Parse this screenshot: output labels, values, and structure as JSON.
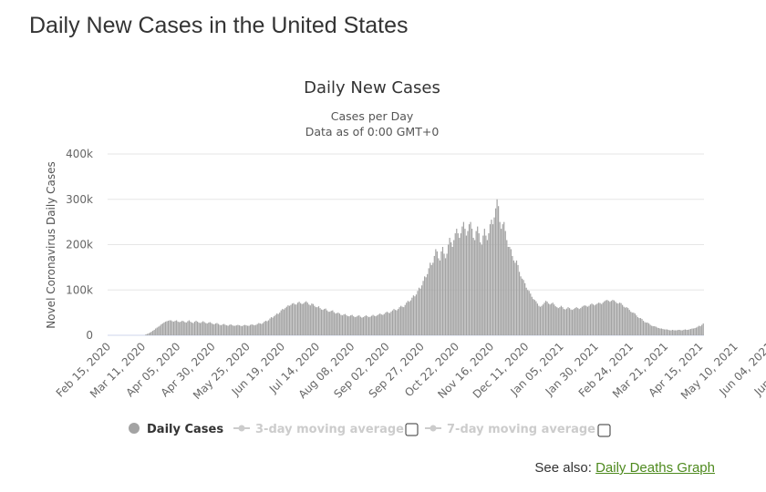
{
  "page": {
    "heading": "Daily New Cases in the United States",
    "see_also_prefix": "See also:",
    "see_also_link": "Daily Deaths Graph"
  },
  "colors": {
    "bar": "#a3a3a3",
    "grid": "#e6e6e6",
    "axis_text": "#666666",
    "legend_inactive": "#cccccc",
    "link": "#4e8a1e"
  },
  "chart_data": {
    "type": "bar",
    "title": "Daily New Cases",
    "subtitle_lines": [
      "Cases per Day",
      "Data as of 0:00 GMT+0"
    ],
    "ylabel": "Novel Coronavirus Daily Cases",
    "xlabel": "",
    "ylim": [
      0,
      400000
    ],
    "y_ticks": [
      0,
      100000,
      200000,
      300000,
      400000
    ],
    "y_tick_labels": [
      "0",
      "100k",
      "200k",
      "300k",
      "400k"
    ],
    "x_tick_labels": [
      "Feb 15, 2020",
      "Mar 11, 2020",
      "Apr 05, 2020",
      "Apr 30, 2020",
      "May 25, 2020",
      "Jun 19, 2020",
      "Jul 14, 2020",
      "Aug 08, 2020",
      "Sep 02, 2020",
      "Sep 27, 2020",
      "Oct 22, 2020",
      "Nov 16, 2020",
      "Dec 11, 2020",
      "Jan 05, 2021",
      "Jan 30, 2021",
      "Feb 24, 2021",
      "Mar 21, 2021",
      "Apr 15, 2021",
      "May 10, 2021",
      "Jun 04, 2021",
      "Jun 29, 2021"
    ],
    "grid": true,
    "legend_position": "bottom",
    "legend": [
      {
        "label": "Daily Cases",
        "active": true
      },
      {
        "label": "3-day moving average",
        "active": false
      },
      {
        "label": "7-day moving average",
        "active": false
      }
    ],
    "series": [
      {
        "name": "Daily Cases",
        "dates": [
          "2020-02-15",
          "2020-07-10"
        ],
        "values": [
          0,
          0,
          0,
          0,
          0,
          0,
          0,
          0,
          0,
          0,
          0,
          0,
          0,
          0,
          0,
          0,
          0,
          0,
          0,
          0,
          0,
          0,
          0,
          0,
          0,
          0,
          0,
          2000,
          3000,
          4500,
          6000,
          8000,
          10000,
          12000,
          15000,
          17000,
          19000,
          21000,
          24000,
          26000,
          28000,
          30000,
          31000,
          32000,
          33000,
          33000,
          31000,
          30000,
          32000,
          33000,
          30000,
          29000,
          30000,
          32000,
          31000,
          29000,
          28000,
          31000,
          33000,
          30000,
          28000,
          27000,
          30000,
          32000,
          30000,
          28000,
          27000,
          29000,
          31000,
          29000,
          27000,
          26000,
          28000,
          29000,
          27000,
          25000,
          24000,
          26000,
          27000,
          25000,
          23000,
          22000,
          24000,
          25000,
          23000,
          22000,
          21000,
          23000,
          24000,
          22000,
          21000,
          21000,
          22000,
          23000,
          22000,
          21000,
          20000,
          22000,
          23000,
          22000,
          21000,
          21000,
          23000,
          24000,
          23000,
          22000,
          23000,
          25000,
          27000,
          26000,
          25000,
          27000,
          30000,
          32000,
          31000,
          33000,
          37000,
          40000,
          39000,
          42000,
          45000,
          48000,
          47000,
          50000,
          55000,
          58000,
          57000,
          60000,
          63000,
          66000,
          65000,
          67000,
          70000,
          71000,
          68000,
          68000,
          72000,
          74000,
          71000,
          69000,
          70000,
          73000,
          75000,
          72000,
          68000,
          66000,
          70000,
          69000,
          65000,
          62000,
          62000,
          64000,
          60000,
          57000,
          56000,
          58000,
          59000,
          55000,
          52000,
          52000,
          54000,
          55000,
          51000,
          48000,
          49000,
          50000,
          48000,
          45000,
          44000,
          46000,
          47000,
          44000,
          42000,
          42000,
          44000,
          45000,
          42000,
          40000,
          41000,
          43000,
          44000,
          41000,
          39000,
          40000,
          42000,
          44000,
          42000,
          40000,
          41000,
          43000,
          45000,
          43000,
          42000,
          44000,
          46000,
          48000,
          46000,
          45000,
          47000,
          50000,
          52000,
          50000,
          49000,
          52000,
          55000,
          58000,
          56000,
          55000,
          58000,
          62000,
          65000,
          63000,
          62000,
          67000,
          72000,
          76000,
          74000,
          77000,
          83000,
          88000,
          86000,
          90000,
          98000,
          105000,
          103000,
          110000,
          120000,
          130000,
          128000,
          135000,
          148000,
          160000,
          155000,
          160000,
          175000,
          190000,
          185000,
          170000,
          165000,
          185000,
          195000,
          180000,
          170000,
          180000,
          200000,
          215000,
          205000,
          195000,
          210000,
          225000,
          235000,
          225000,
          215000,
          225000,
          240000,
          250000,
          235000,
          220000,
          230000,
          245000,
          250000,
          235000,
          215000,
          210000,
          230000,
          240000,
          225000,
          205000,
          200000,
          220000,
          235000,
          220000,
          210000,
          225000,
          245000,
          255000,
          245000,
          260000,
          280000,
          300000,
          285000,
          250000,
          235000,
          245000,
          250000,
          230000,
          210000,
          195000,
          195000,
          190000,
          175000,
          165000,
          160000,
          165000,
          155000,
          140000,
          130000,
          125000,
          122000,
          115000,
          105000,
          100000,
          98000,
          92000,
          85000,
          80000,
          78000,
          75000,
          70000,
          65000,
          63000,
          65000,
          68000,
          72000,
          76000,
          74000,
          70000,
          68000,
          70000,
          72000,
          68000,
          64000,
          62000,
          60000,
          62000,
          65000,
          62000,
          58000,
          57000,
          59000,
          62000,
          60000,
          57000,
          56000,
          58000,
          60000,
          62000,
          60000,
          58000,
          60000,
          63000,
          65000,
          66000,
          65000,
          63000,
          65000,
          68000,
          70000,
          68000,
          66000,
          68000,
          70000,
          72000,
          71000,
          69000,
          72000,
          75000,
          77000,
          78000,
          76000,
          74000,
          76000,
          78000,
          77000,
          74000,
          71000,
          70000,
          72000,
          71000,
          67000,
          63000,
          61000,
          62000,
          60000,
          56000,
          52000,
          50000,
          50000,
          48000,
          44000,
          40000,
          38000,
          38000,
          36000,
          32000,
          29000,
          28000,
          28000,
          26000,
          23000,
          21000,
          20000,
          20000,
          19000,
          17000,
          16000,
          15000,
          15000,
          14000,
          13000,
          13000,
          13000,
          12000,
          11000,
          11000,
          12000,
          11000,
          11000,
          11000,
          12000,
          12000,
          11000,
          11000,
          12000,
          13000,
          12000,
          12000,
          13000,
          14000,
          15000,
          15000,
          16000,
          17000,
          19000,
          21000,
          20000,
          23000,
          26000
        ]
      }
    ]
  }
}
